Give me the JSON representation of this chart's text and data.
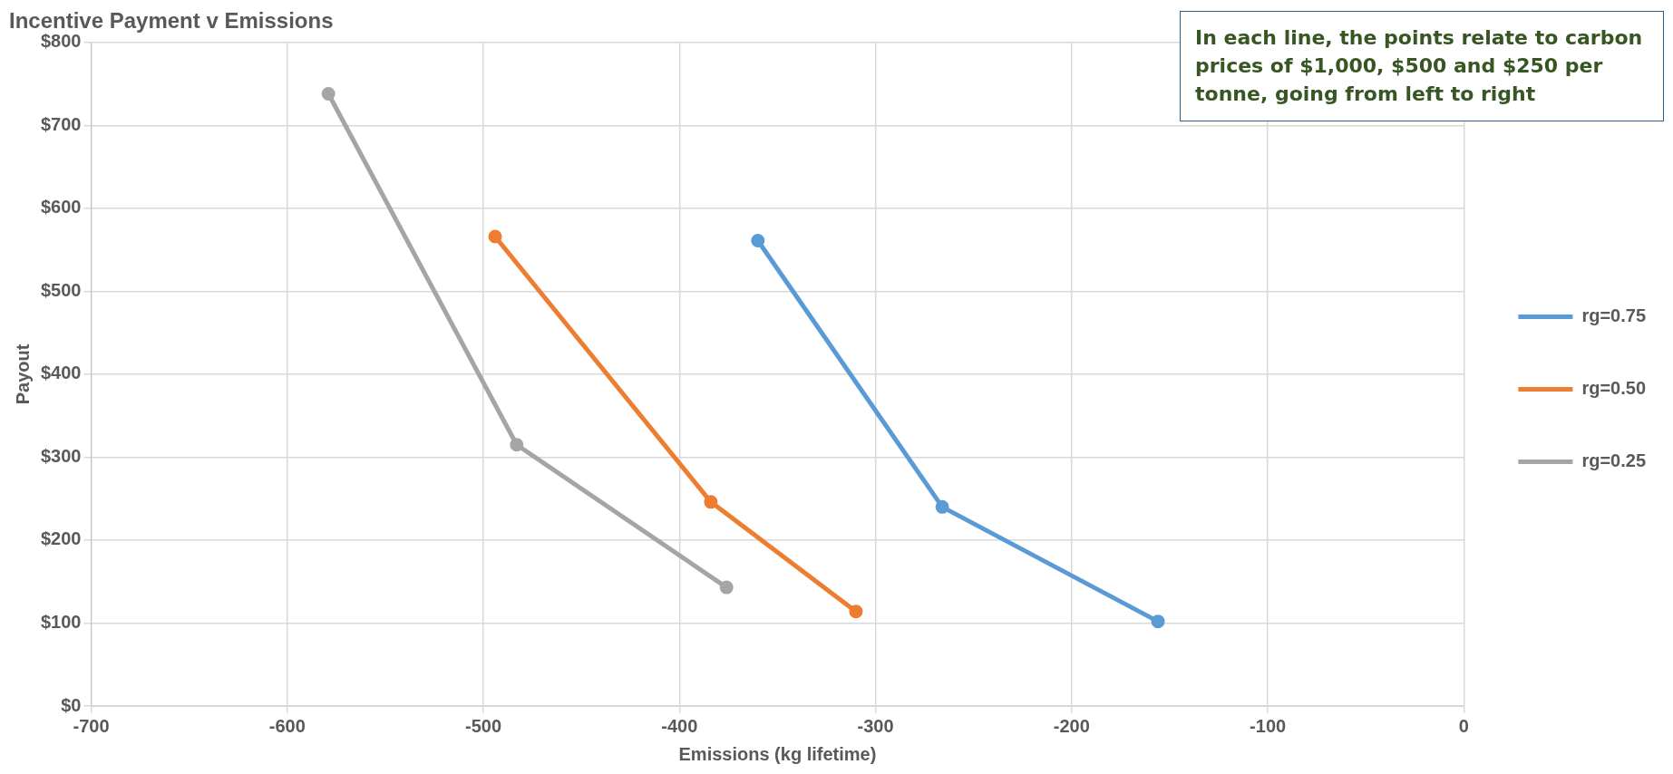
{
  "chart_data": {
    "type": "line",
    "title": "Incentive Payment v Emissions",
    "xlabel": "Emissions (kg lifetime)",
    "ylabel": "Payout",
    "annotations": [
      "In each line, the points relate to carbon prices of $1,000, $500 and $250 per tonne, going from left to right"
    ],
    "series": [
      {
        "name": "rg=0.75",
        "color": "#5b9bd5",
        "x": [
          -360,
          -266,
          -156
        ],
        "values": [
          561,
          240,
          102
        ]
      },
      {
        "name": "rg=0.50",
        "color": "#ed7d31",
        "x": [
          -494,
          -384,
          -310
        ],
        "values": [
          566,
          246,
          114
        ]
      },
      {
        "name": "rg=0.25",
        "color": "#a5a5a5",
        "x": [
          -579,
          -483,
          -376
        ],
        "values": [
          738,
          315,
          143
        ]
      }
    ],
    "xlim": [
      -700,
      0
    ],
    "xticks": [
      -700,
      -600,
      -500,
      -400,
      -300,
      -200,
      -100,
      0
    ],
    "ylim": [
      0,
      800
    ],
    "yticks": [
      {
        "value": 0,
        "label": "$0"
      },
      {
        "value": 100,
        "label": "$100"
      },
      {
        "value": 200,
        "label": "$200"
      },
      {
        "value": 300,
        "label": "$300"
      },
      {
        "value": 400,
        "label": "$400"
      },
      {
        "value": 500,
        "label": "$500"
      },
      {
        "value": 600,
        "label": "$600"
      },
      {
        "value": 700,
        "label": "$700"
      },
      {
        "value": 800,
        "label": "$800"
      }
    ],
    "grid": true,
    "legend": "right",
    "marker": "circle",
    "line_style": "solid"
  }
}
